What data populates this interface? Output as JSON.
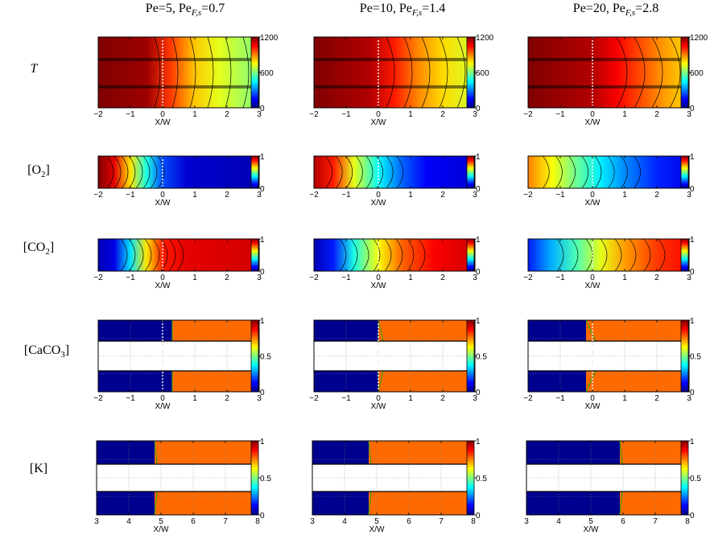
{
  "column_titles": [
    {
      "pe": "Pe=5, Pe",
      "sub": "F,s",
      "val": "=0.7"
    },
    {
      "pe": "Pe=10, Pe",
      "sub": "F,s",
      "val": "=1.4"
    },
    {
      "pe": "Pe=20, Pe",
      "sub": "F,s",
      "val": "=2.8"
    }
  ],
  "row_labels": [
    {
      "main": "T",
      "sub": "",
      "tail": "",
      "italic": true
    },
    {
      "main": "[O",
      "sub": "2",
      "tail": "]",
      "italic": false
    },
    {
      "main": "[CO",
      "sub": "2",
      "tail": "]",
      "italic": false
    },
    {
      "main": "[CaCO",
      "sub": "3",
      "tail": "]",
      "italic": false
    },
    {
      "main": "[K]",
      "sub": "",
      "tail": "",
      "italic": false
    }
  ],
  "xlabel": "X/W",
  "colorbar_ticks": [
    [
      "0",
      "600",
      "1200"
    ],
    [
      "0",
      "1"
    ],
    [
      "0",
      "1"
    ],
    [
      "0",
      "0.5",
      "1"
    ],
    [
      "0",
      "0.5",
      "1"
    ]
  ],
  "x_ticks": [
    [
      "−2",
      "−1",
      "0",
      "1",
      "2",
      "3"
    ],
    [
      "−2",
      "−1",
      "0",
      "1",
      "2",
      "3"
    ],
    [
      "−2",
      "−1",
      "0",
      "1",
      "2",
      "3"
    ],
    [
      "−2",
      "−1",
      "0",
      "1",
      "2",
      "3"
    ],
    [
      "3",
      "4",
      "5",
      "6",
      "7",
      "8"
    ]
  ],
  "colors": {
    "red": "#ff2a00",
    "darkred": "#b40000",
    "orange": "#ff6a00",
    "blue": "#00008f",
    "white": "#ffffff"
  },
  "chart_data": {
    "type": "heatmap",
    "rows": [
      "T",
      "[O2]",
      "[CO2]",
      "[CaCO3]",
      "[K]"
    ],
    "columns": [
      "Pe=5, PeF,s=0.7",
      "Pe=10, PeF,s=1.4",
      "Pe=20, PeF,s=2.8"
    ],
    "xlabel": "X/W",
    "xlim_rows_1_to_4": [
      -2,
      3
    ],
    "xlim_row_5": [
      3,
      8
    ],
    "colorbar_ranges": [
      [
        0,
        1200
      ],
      [
        0,
        1
      ],
      [
        0,
        1
      ],
      [
        0,
        1
      ],
      [
        0,
        1
      ]
    ],
    "colormap": "jet",
    "front_position_K": [
      4.8,
      4.75,
      5.9
    ],
    "front_position_CaCO3": [
      0.3,
      0.0,
      -0.2
    ]
  }
}
